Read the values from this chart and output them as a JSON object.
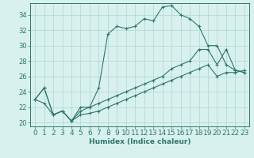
{
  "title": "",
  "xlabel": "Humidex (Indice chaleur)",
  "x": [
    0,
    1,
    2,
    3,
    4,
    5,
    6,
    7,
    8,
    9,
    10,
    11,
    12,
    13,
    14,
    15,
    16,
    17,
    18,
    19,
    20,
    21,
    22,
    23
  ],
  "line1": [
    23,
    24.5,
    21,
    21.5,
    20.2,
    22.0,
    22.0,
    24.5,
    31.5,
    32.5,
    32.2,
    32.5,
    33.5,
    33.2,
    35.0,
    35.2,
    34.0,
    33.5,
    32.5,
    30.0,
    30.0,
    27.5,
    26.8,
    26.5
  ],
  "line2": [
    23,
    24.5,
    21,
    21.5,
    20.2,
    21.5,
    22.0,
    22.5,
    23.0,
    23.5,
    24.0,
    24.5,
    25.0,
    25.5,
    26.0,
    27.0,
    27.5,
    28.0,
    29.5,
    29.5,
    27.5,
    29.5,
    26.8,
    26.5
  ],
  "line3": [
    23,
    22.5,
    21,
    21.5,
    20.2,
    21.0,
    21.2,
    21.5,
    22.0,
    22.5,
    23.0,
    23.5,
    24.0,
    24.5,
    25.0,
    25.5,
    26.0,
    26.5,
    27.0,
    27.5,
    26.0,
    26.5,
    26.5,
    26.8
  ],
  "color": "#2a7a6a",
  "bg_color": "#d8f0ee",
  "grid_color": "#aad8d4",
  "xlim": [
    -0.5,
    23.5
  ],
  "ylim": [
    19.5,
    35.5
  ],
  "yticks": [
    20,
    22,
    24,
    26,
    28,
    30,
    32,
    34
  ],
  "xticks": [
    0,
    1,
    2,
    3,
    4,
    5,
    6,
    7,
    8,
    9,
    10,
    11,
    12,
    13,
    14,
    15,
    16,
    17,
    18,
    19,
    20,
    21,
    22,
    23
  ],
  "xlabel_fontsize": 6.5,
  "tick_fontsize": 6.0
}
